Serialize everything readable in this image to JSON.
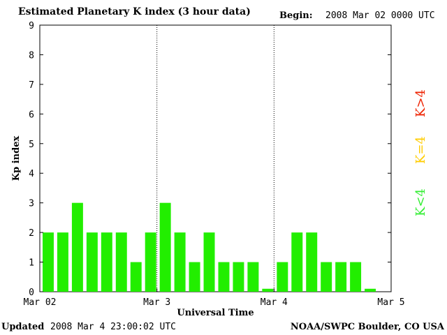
{
  "header": {
    "title": "Estimated Planetary K index (3 hour data)",
    "begin_label": "Begin:",
    "begin_value": "2008 Mar 02 0000 UTC"
  },
  "footer": {
    "updated_label": "Updated",
    "updated_value": "2008 Mar  4 23:00:02 UTC",
    "source": "NOAA/SWPC Boulder, CO USA"
  },
  "chart_data": {
    "type": "bar",
    "title": "Estimated Planetary K index (3 hour data)",
    "xlabel": "Universal Time",
    "ylabel": "Kp index",
    "ylim": [
      0,
      9
    ],
    "yticks": [
      "0",
      "1",
      "2",
      "3",
      "4",
      "5",
      "6",
      "7",
      "8",
      "9"
    ],
    "xtick_labels": [
      "Mar 02",
      "Mar 3",
      "Mar 4",
      "Mar 5"
    ],
    "day_separators": true,
    "values": [
      2,
      2,
      3,
      2,
      2,
      2,
      1,
      2,
      3,
      2,
      1,
      2,
      1,
      1,
      1,
      0.1,
      1,
      2,
      2,
      1,
      1,
      1,
      0.1
    ],
    "bar_color": "#22ee00",
    "legend": [
      {
        "label": "K<4",
        "color": "#33ee33"
      },
      {
        "label": "K=4",
        "color": "#ffcc00"
      },
      {
        "label": "K>4",
        "color": "#ee2200"
      }
    ]
  }
}
